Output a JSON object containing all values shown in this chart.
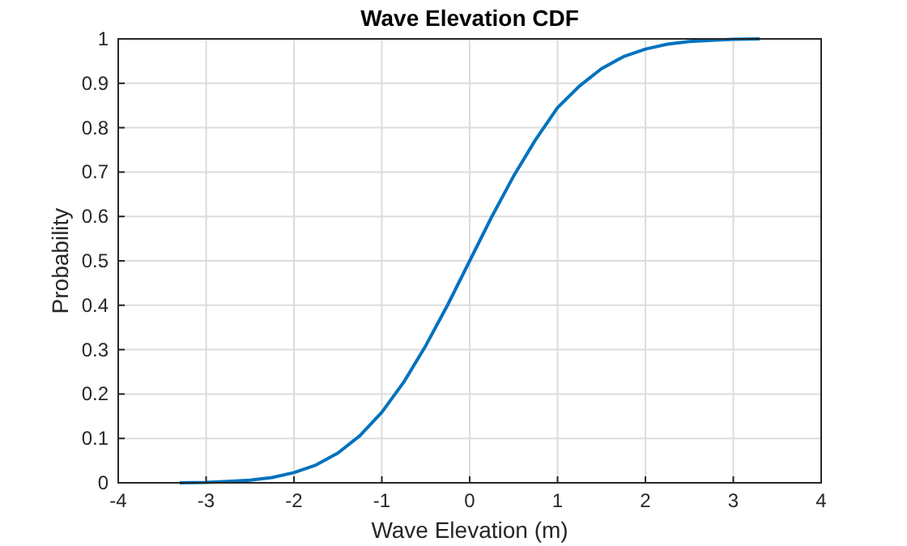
{
  "chart_data": {
    "type": "line",
    "title": "Wave Elevation CDF",
    "xlabel": "Wave Elevation (m)",
    "ylabel": "Probability",
    "x": [
      -3.3,
      -3,
      -2.75,
      -2.5,
      -2.25,
      -2,
      -1.75,
      -1.5,
      -1.25,
      -1,
      -0.75,
      -0.5,
      -0.25,
      0,
      0.25,
      0.5,
      0.75,
      1,
      1.25,
      1.5,
      1.75,
      2,
      2.25,
      2.5,
      2.75,
      3,
      3.3
    ],
    "series": [
      {
        "color": "#0072bd",
        "values": [
          0,
          0.001,
          0.003,
          0.006,
          0.012,
          0.023,
          0.04,
          0.067,
          0.106,
          0.159,
          0.227,
          0.309,
          0.401,
          0.5,
          0.599,
          0.691,
          0.773,
          0.845,
          0.894,
          0.933,
          0.96,
          0.977,
          0.988,
          0.994,
          0.997,
          0.999,
          1
        ]
      }
    ],
    "xlim": [
      -4,
      4
    ],
    "xticks": [
      -4,
      -3,
      -2,
      -1,
      0,
      1,
      2,
      3,
      4
    ],
    "ylim": [
      0,
      1
    ],
    "yticks": [
      0,
      0.1,
      0.2,
      0.3,
      0.4,
      0.5,
      0.6,
      0.7,
      0.8,
      0.9,
      1
    ],
    "grid": true,
    "marker": "none",
    "line_style": "solid"
  }
}
